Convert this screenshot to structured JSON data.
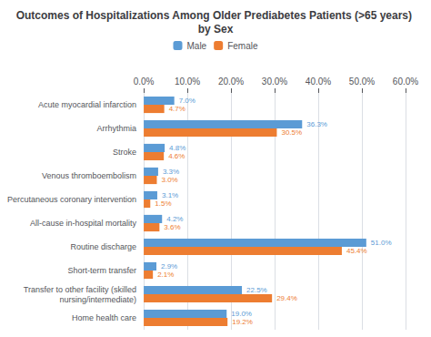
{
  "chart_data": {
    "type": "bar",
    "orientation": "horizontal",
    "title": "Outcomes of Hospitalizations Among Older Prediabetes Patients (>65 years) by Sex",
    "categories": [
      "Acute myocardial infarction",
      "Arrhythmia",
      "Stroke",
      "Venous thromboembolism",
      "Percutaneous coronary intervention",
      "All-cause in-hospital mortality",
      "Routine discharge",
      "Short-term transfer",
      "Transfer to other facility (skilled\nnursing/intermediate)",
      "Home health care"
    ],
    "series": [
      {
        "name": "Male",
        "color": "#5B9BD5",
        "values": [
          7.0,
          36.3,
          4.8,
          3.3,
          3.1,
          4.2,
          51.0,
          2.9,
          22.5,
          19.0
        ],
        "value_labels": [
          "7.0%",
          "36.3%",
          "4.8%",
          "3.3%",
          "3.1%",
          "4.2%",
          "51.0%",
          "2.9%",
          "22.5%",
          "19.0%"
        ]
      },
      {
        "name": "Female",
        "color": "#ED7D31",
        "values": [
          4.7,
          30.5,
          4.6,
          3.0,
          1.5,
          3.6,
          45.4,
          2.1,
          29.4,
          19.2
        ],
        "value_labels": [
          "4.7%",
          "30.5%",
          "4.6%",
          "3.0%",
          "1.5%",
          "3.6%",
          "45.4%",
          "2.1%",
          "29.4%",
          "19.2%"
        ]
      }
    ],
    "xlim": [
      0,
      60
    ],
    "xticks": [
      {
        "value": 0,
        "label": "0.0%"
      },
      {
        "value": 10,
        "label": "10.0%"
      },
      {
        "value": 20,
        "label": "20.0%"
      },
      {
        "value": 30,
        "label": "30.0%"
      },
      {
        "value": 40,
        "label": "40.0%"
      },
      {
        "value": 50,
        "label": "50.0%"
      },
      {
        "value": 60,
        "label": "60.0%"
      }
    ],
    "grid": true,
    "legend": "top",
    "data_labels": true
  }
}
